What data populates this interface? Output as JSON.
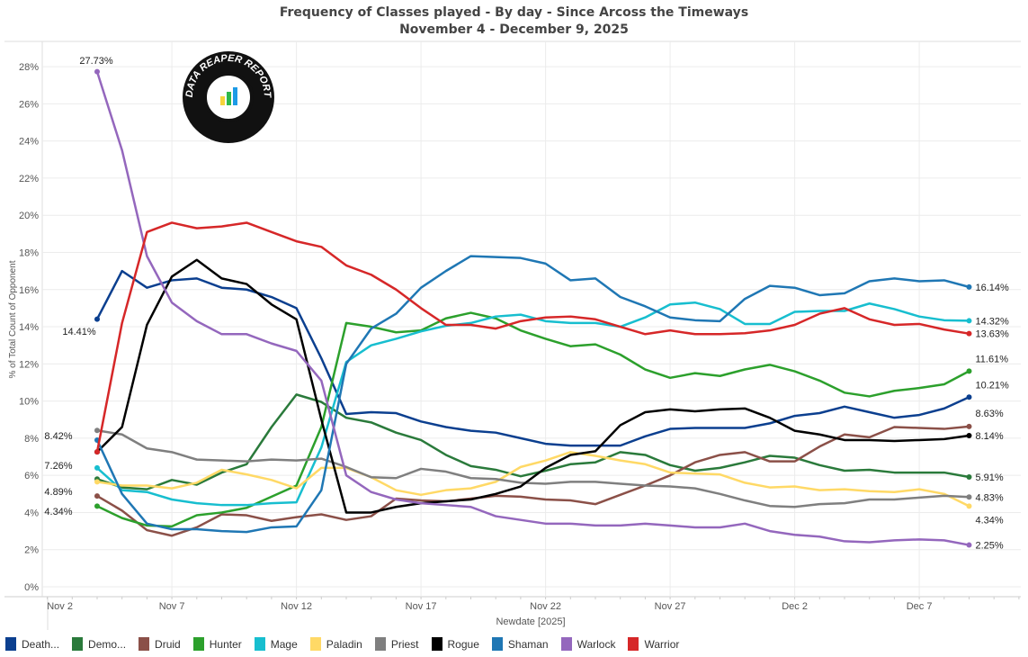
{
  "chart_data": {
    "type": "line",
    "title": "Frequency of Classes played - By day - Since Arcoss the Timeways",
    "subtitle": "November 4 - December 9, 2025",
    "xlabel": "Newdate [2025]",
    "ylabel": "% of Total Count of Opponent",
    "ylim": [
      0,
      29
    ],
    "yticks": [
      "0%",
      "2%",
      "4%",
      "6%",
      "8%",
      "10%",
      "12%",
      "14%",
      "16%",
      "18%",
      "20%",
      "22%",
      "24%",
      "26%",
      "28%"
    ],
    "xticks": [
      "Nov 2",
      "Nov 7",
      "Nov 12",
      "Nov 17",
      "Nov 22",
      "Nov 27",
      "Dec 2",
      "Dec 7"
    ],
    "x_start": "Nov 4",
    "x_end": "Dec 9",
    "grid": true,
    "legend_position": "bottom",
    "logo_text": "DATA REAPER REPORT",
    "series": [
      {
        "name": "Death Knight",
        "legend": "Death...",
        "color": "#0b3f8f",
        "start_label": "14.41%",
        "end_label": "10.21%",
        "values": [
          14.41,
          17.0,
          16.1,
          16.5,
          16.6,
          16.1,
          16.0,
          15.6,
          15.0,
          12.3,
          9.3,
          9.4,
          9.35,
          8.9,
          8.6,
          8.4,
          8.3,
          8.0,
          7.7,
          7.6,
          7.6,
          7.6,
          8.1,
          8.5,
          8.55,
          8.55,
          8.55,
          8.8,
          9.2,
          9.35,
          9.7,
          9.4,
          9.1,
          9.25,
          9.6,
          10.21
        ]
      },
      {
        "name": "Demon Hunter",
        "legend": "Demo...",
        "color": "#2a7a3b",
        "start_label": "",
        "end_label": "5.91%",
        "values": [
          5.8,
          5.35,
          5.25,
          5.75,
          5.5,
          6.15,
          6.6,
          8.6,
          10.35,
          9.95,
          9.1,
          8.85,
          8.3,
          7.9,
          7.1,
          6.5,
          6.3,
          5.95,
          6.25,
          6.6,
          6.7,
          7.25,
          7.1,
          6.55,
          6.25,
          6.4,
          6.7,
          7.05,
          6.95,
          6.55,
          6.25,
          6.3,
          6.15,
          6.15,
          6.15,
          5.91
        ]
      },
      {
        "name": "Druid",
        "legend": "Druid",
        "color": "#8b5048",
        "start_label": "4.89%",
        "end_label": "8.63%",
        "values": [
          4.89,
          4.1,
          3.05,
          2.75,
          3.2,
          3.9,
          3.85,
          3.55,
          3.75,
          3.9,
          3.6,
          3.8,
          4.75,
          4.65,
          4.6,
          4.75,
          4.9,
          4.85,
          4.7,
          4.65,
          4.45,
          4.95,
          5.45,
          6.0,
          6.7,
          7.1,
          7.25,
          6.75,
          6.75,
          7.55,
          8.2,
          8.05,
          8.6,
          8.55,
          8.5,
          8.63
        ]
      },
      {
        "name": "Hunter",
        "legend": "Hunter",
        "color": "#2ca02c",
        "start_label": "4.34%",
        "end_label": "11.61%",
        "values": [
          4.34,
          3.7,
          3.3,
          3.25,
          3.85,
          4.0,
          4.25,
          4.85,
          5.45,
          8.6,
          14.2,
          14.0,
          13.7,
          13.8,
          14.45,
          14.75,
          14.45,
          13.8,
          13.35,
          12.95,
          13.05,
          12.5,
          11.7,
          11.25,
          11.5,
          11.35,
          11.7,
          11.95,
          11.6,
          11.1,
          10.45,
          10.25,
          10.55,
          10.7,
          10.9,
          11.61
        ]
      },
      {
        "name": "Mage",
        "legend": "Mage",
        "color": "#17becf",
        "start_label": "",
        "end_label": "14.32%",
        "values": [
          6.4,
          5.2,
          5.1,
          4.7,
          4.5,
          4.4,
          4.4,
          4.5,
          4.55,
          7.5,
          12.1,
          13.0,
          13.35,
          13.75,
          14.05,
          14.2,
          14.55,
          14.65,
          14.3,
          14.2,
          14.2,
          14.0,
          14.5,
          15.2,
          15.3,
          14.95,
          14.15,
          14.15,
          14.8,
          14.85,
          14.85,
          15.25,
          14.95,
          14.55,
          14.35,
          14.32
        ]
      },
      {
        "name": "Paladin",
        "legend": "Paladin",
        "color": "#ffd966",
        "start_label": "",
        "end_label": "4.34%",
        "values": [
          5.65,
          5.45,
          5.45,
          5.3,
          5.6,
          6.3,
          6.05,
          5.75,
          5.3,
          6.4,
          6.4,
          5.9,
          5.2,
          4.95,
          5.2,
          5.3,
          5.65,
          6.45,
          6.8,
          7.25,
          7.05,
          6.8,
          6.6,
          6.15,
          6.1,
          6.05,
          5.6,
          5.35,
          5.4,
          5.2,
          5.25,
          5.15,
          5.1,
          5.25,
          5.0,
          4.34
        ]
      },
      {
        "name": "Priest",
        "legend": "Priest",
        "color": "#7f7f7f",
        "start_label": "8.42%",
        "end_label": "4.83%",
        "values": [
          8.42,
          8.2,
          7.45,
          7.25,
          6.85,
          6.8,
          6.75,
          6.85,
          6.8,
          6.9,
          6.45,
          5.9,
          5.85,
          6.35,
          6.2,
          5.85,
          5.8,
          5.6,
          5.55,
          5.65,
          5.65,
          5.55,
          5.45,
          5.4,
          5.3,
          5.0,
          4.65,
          4.35,
          4.3,
          4.45,
          4.5,
          4.7,
          4.7,
          4.8,
          4.9,
          4.83
        ]
      },
      {
        "name": "Rogue",
        "legend": "Rogue",
        "color": "#000000",
        "start_label": "7.26%",
        "end_label": "8.14%",
        "values": [
          7.26,
          8.6,
          14.1,
          16.7,
          17.6,
          16.6,
          16.3,
          15.2,
          14.4,
          9.0,
          4.0,
          4.0,
          4.3,
          4.5,
          4.6,
          4.7,
          5.0,
          5.4,
          6.4,
          7.1,
          7.3,
          8.7,
          9.4,
          9.55,
          9.45,
          9.55,
          9.6,
          9.1,
          8.4,
          8.2,
          7.9,
          7.9,
          7.85,
          7.9,
          7.95,
          8.14
        ]
      },
      {
        "name": "Shaman",
        "legend": "Shaman",
        "color": "#1f77b4",
        "start_label": "",
        "end_label": "16.14%",
        "values": [
          7.9,
          5.0,
          3.4,
          3.1,
          3.1,
          3.0,
          2.95,
          3.2,
          3.25,
          5.2,
          12.0,
          13.9,
          14.7,
          16.1,
          17.0,
          17.8,
          17.75,
          17.7,
          17.4,
          16.5,
          16.6,
          15.6,
          15.1,
          14.5,
          14.35,
          14.3,
          15.5,
          16.2,
          16.1,
          15.7,
          15.8,
          16.45,
          16.6,
          16.45,
          16.5,
          16.14
        ]
      },
      {
        "name": "Warlock",
        "legend": "Warlock",
        "color": "#9467bd",
        "start_label": "27.73%",
        "end_label": "2.25%",
        "values": [
          27.73,
          23.5,
          17.8,
          15.3,
          14.3,
          13.6,
          13.6,
          13.1,
          12.7,
          11.1,
          6.0,
          5.1,
          4.7,
          4.5,
          4.4,
          4.3,
          3.8,
          3.6,
          3.4,
          3.4,
          3.3,
          3.3,
          3.4,
          3.3,
          3.2,
          3.2,
          3.4,
          3.0,
          2.8,
          2.7,
          2.45,
          2.4,
          2.5,
          2.55,
          2.5,
          2.25
        ]
      },
      {
        "name": "Warrior",
        "legend": "Warrior",
        "color": "#d62728",
        "start_label": "",
        "end_label": "13.63%",
        "values": [
          7.26,
          14.2,
          19.1,
          19.6,
          19.3,
          19.4,
          19.6,
          19.1,
          18.6,
          18.3,
          17.3,
          16.8,
          16.0,
          15.0,
          14.1,
          14.1,
          13.9,
          14.3,
          14.5,
          14.55,
          14.4,
          14.0,
          13.6,
          13.8,
          13.6,
          13.6,
          13.65,
          13.8,
          14.1,
          14.7,
          15.0,
          14.4,
          14.1,
          14.15,
          13.85,
          13.63
        ]
      }
    ]
  }
}
